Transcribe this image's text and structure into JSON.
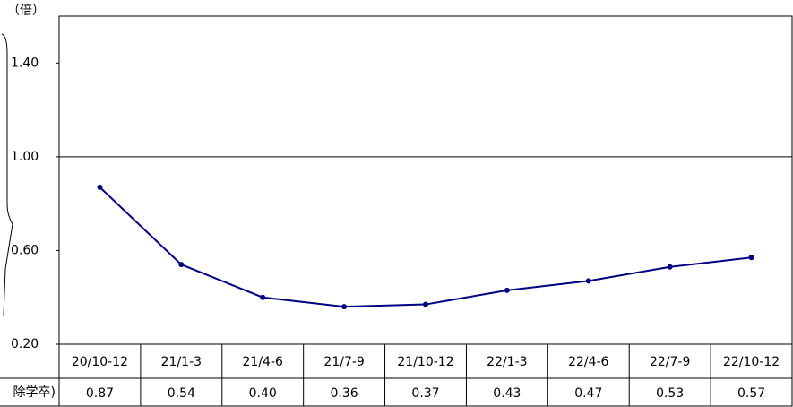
{
  "chart_data": {
    "type": "line",
    "y_unit": "（倍）",
    "row_label": "除学卒)",
    "categories": [
      "20/10-12",
      "21/1-3",
      "21/4-6",
      "21/7-9",
      "21/10-12",
      "22/1-3",
      "22/4-6",
      "22/7-9",
      "22/10-12"
    ],
    "values": [
      0.87,
      0.54,
      0.4,
      0.36,
      0.37,
      0.43,
      0.47,
      0.53,
      0.57
    ],
    "value_labels": [
      "0.87",
      "0.54",
      "0.40",
      "0.36",
      "0.37",
      "0.43",
      "0.47",
      "0.53",
      "0.57"
    ],
    "color": "#000080",
    "ylim": [
      0.2,
      1.6
    ],
    "yticks": [
      {
        "value": 0.2,
        "label": "0.20"
      },
      {
        "value": 0.6,
        "label": "0.60"
      },
      {
        "value": 1.0,
        "label": "1.00"
      },
      {
        "value": 1.4,
        "label": "1.40"
      }
    ],
    "reference_line": 1.0
  }
}
